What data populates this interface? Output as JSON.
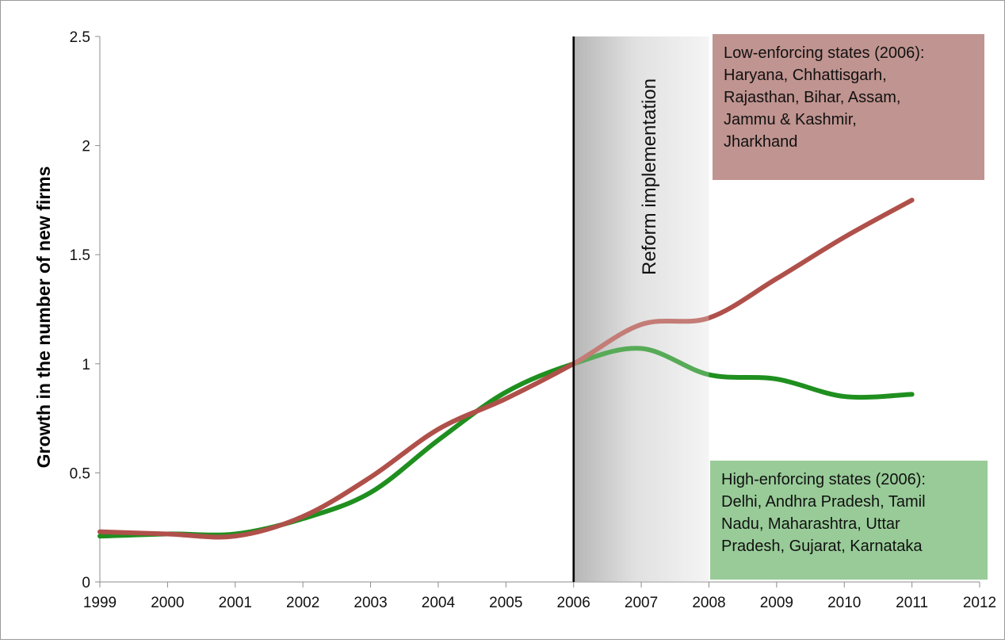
{
  "chart_data": {
    "type": "line",
    "ylabel": "Growth in the number of new firms",
    "xlabel": "",
    "xlim": [
      1999,
      2012
    ],
    "ylim": [
      0,
      2.5
    ],
    "x_ticks": [
      "1999",
      "2000",
      "2001",
      "2002",
      "2003",
      "2004",
      "2005",
      "2006",
      "2007",
      "2008",
      "2009",
      "2010",
      "2011",
      "2012"
    ],
    "y_ticks": [
      "0",
      "0.5",
      "1",
      "1.5",
      "2",
      "2.5"
    ],
    "grid": false,
    "legend": "none",
    "series": [
      {
        "color": "#b0504a",
        "x": [
          1999,
          2000,
          2001,
          2002,
          2003,
          2004,
          2005,
          2006,
          2007,
          2008,
          2009,
          2010,
          2011
        ],
        "values": [
          0.23,
          0.22,
          0.21,
          0.3,
          0.48,
          0.7,
          0.84,
          1.0,
          1.18,
          1.21,
          1.39,
          1.58,
          1.75
        ]
      },
      {
        "color": "#1f8f1f",
        "x": [
          1999,
          2000,
          2001,
          2002,
          2003,
          2004,
          2005,
          2006,
          2007,
          2008,
          2009,
          2010,
          2011
        ],
        "values": [
          0.21,
          0.22,
          0.22,
          0.29,
          0.41,
          0.65,
          0.87,
          1.0,
          1.07,
          0.95,
          0.93,
          0.85,
          0.86
        ]
      }
    ],
    "reform_line_x": 2006,
    "reform_band": [
      2006,
      2008
    ],
    "reform_label": "Reform implementation",
    "annotations": {
      "low": {
        "color": "#c09490",
        "lines": [
          "Low-enforcing states (2006):",
          "Haryana, Chhattisgarh,",
          "Rajasthan, Bihar, Assam,",
          "Jammu & Kashmir,",
          "Jharkhand"
        ]
      },
      "high": {
        "color": "#98cb98",
        "lines": [
          "High-enforcing states (2006):",
          "Delhi, Andhra Pradesh, Tamil",
          "Nadu, Maharashtra, Uttar",
          "Pradesh, Gujarat, Karnataka"
        ]
      }
    }
  }
}
